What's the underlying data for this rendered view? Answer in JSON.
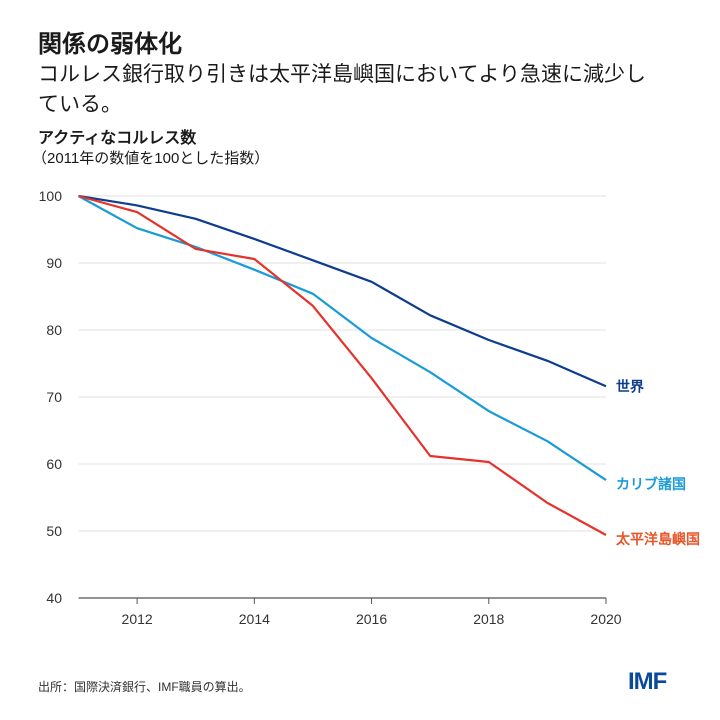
{
  "header": {
    "title": "関係の弱体化",
    "subtitle": "コルレス銀行取り引きは太平洋島嶼国においてより急速に減少している。"
  },
  "chart_data": {
    "type": "line",
    "title": "アクティなコルレス数",
    "subtitle": "（2011年の数値を100とした指数）",
    "xlabel": "",
    "ylabel": "",
    "x": [
      2011,
      2012,
      2013,
      2014,
      2015,
      2016,
      2017,
      2018,
      2019,
      2020
    ],
    "xlim": [
      2011,
      2020
    ],
    "ylim": [
      40,
      100
    ],
    "xticks": [
      "2012",
      "2014",
      "2016",
      "2018",
      "2020"
    ],
    "yticks": [
      "40",
      "50",
      "60",
      "70",
      "80",
      "90",
      "100"
    ],
    "grid": "horizontal",
    "legend": "direct labels at line ends",
    "series": [
      {
        "name": "世界",
        "color": "#0d3d8c",
        "values": [
          100,
          98.6,
          96.6,
          93.6,
          90.4,
          87.2,
          82.2,
          78.5,
          75.4,
          71.6
        ]
      },
      {
        "name": "カリブ諸国",
        "color": "#1a9bd7",
        "values": [
          100,
          95.2,
          92.4,
          89.0,
          85.4,
          78.8,
          73.7,
          67.9,
          63.4,
          57.6
        ]
      },
      {
        "name": "太平洋島嶼国",
        "color": "#e5322b",
        "label_color": "#e8562a",
        "values": [
          100,
          97.6,
          92.1,
          90.6,
          83.6,
          72.8,
          61.2,
          60.3,
          54.2,
          49.4
        ]
      }
    ]
  },
  "footer": {
    "source": "出所：国際決済銀行、IMF職員の算出。",
    "logo": "IMF"
  }
}
